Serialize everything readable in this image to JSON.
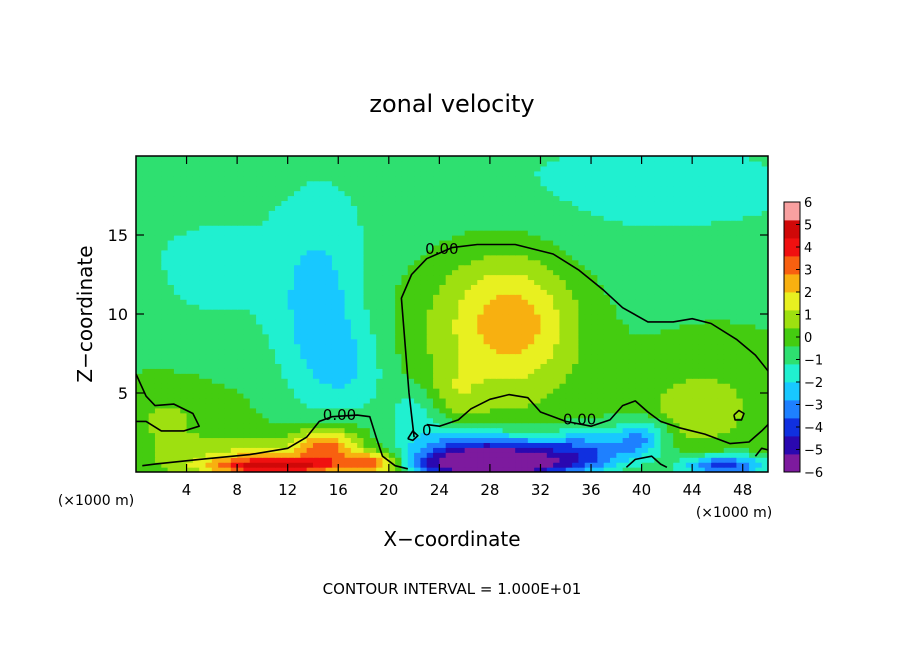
{
  "chart_data": {
    "type": "heatmap",
    "title": "zonal velocity",
    "xlabel": "X−coordinate",
    "ylabel": "Z−coordinate",
    "x_unit_left": "(×1000 m)",
    "x_unit_right": "(×1000 m)",
    "footer": "CONTOUR INTERVAL = 1.000E+01",
    "xlim": [
      0,
      50
    ],
    "ylim": [
      0,
      20
    ],
    "x_ticks": [
      4,
      8,
      12,
      16,
      20,
      24,
      28,
      32,
      36,
      40,
      44,
      48
    ],
    "y_ticks": [
      5,
      10,
      15
    ],
    "colorbar": {
      "ticks": [
        6,
        5,
        4,
        3,
        2,
        1,
        0,
        -1,
        -2,
        -3,
        -4,
        -5,
        -6
      ],
      "tick_labels": [
        "6",
        "5",
        "4",
        "3",
        "2",
        "1",
        "0",
        "−1",
        "−2",
        "−3",
        "−4",
        "−5",
        "−6"
      ],
      "range": [
        -6,
        6
      ],
      "colors": [
        "#7d1a9e",
        "#2a08b0",
        "#1030e0",
        "#1e80ff",
        "#18c8ff",
        "#20f0d0",
        "#2ee070",
        "#44cc10",
        "#9ee010",
        "#e8f020",
        "#f8b010",
        "#f86010",
        "#f01010",
        "#d00808",
        "#f8a0a0"
      ]
    },
    "contour_labels": [
      {
        "text": "0.00",
        "x": 24.2,
        "y": 13.8
      },
      {
        "text": "0.00",
        "x": 16.1,
        "y": 3.3
      },
      {
        "text": "0.00",
        "x": 35.1,
        "y": 3.0
      },
      {
        "text": "0",
        "x": 23.0,
        "y": 2.3
      }
    ],
    "features": [
      {
        "value": 2.3,
        "x": 30.0,
        "y": 9.5,
        "sx": 3.5,
        "sy": 3.0
      },
      {
        "value": 1.0,
        "x": 27.0,
        "y": 10.0,
        "sx": 5.0,
        "sy": 4.0
      },
      {
        "value": 1.2,
        "x": 25.0,
        "y": 4.8,
        "sx": 1.5,
        "sy": 1.2
      },
      {
        "value": 1.0,
        "x": 44.0,
        "y": 3.8,
        "sx": 3.0,
        "sy": 1.5
      },
      {
        "value": -1.8,
        "x": 14.5,
        "y": 9.5,
        "sx": 2.5,
        "sy": 4.5
      },
      {
        "value": -1.0,
        "x": 17.5,
        "y": 6.5,
        "sx": 2.0,
        "sy": 2.0
      },
      {
        "value": -1.5,
        "x": 22.5,
        "y": 3.8,
        "sx": 2.0,
        "sy": 1.3
      },
      {
        "value": -3.5,
        "x": 26.0,
        "y": 1.3,
        "sx": 3.5,
        "sy": 0.9
      },
      {
        "value": -3.2,
        "x": 31.0,
        "y": 1.0,
        "sx": 3.5,
        "sy": 0.9
      },
      {
        "value": -2.5,
        "x": 36.0,
        "y": 1.3,
        "sx": 2.5,
        "sy": 1.0
      },
      {
        "value": -2.5,
        "x": 40.0,
        "y": 2.2,
        "sx": 1.5,
        "sy": 0.9
      },
      {
        "value": -4.5,
        "x": 27.5,
        "y": 0.4,
        "sx": 4.0,
        "sy": 0.5
      },
      {
        "value": -4.0,
        "x": 46.5,
        "y": 0.4,
        "sx": 2.5,
        "sy": 0.5
      },
      {
        "value": 3.5,
        "x": 15.0,
        "y": 1.6,
        "sx": 1.8,
        "sy": 0.9
      },
      {
        "value": 4.2,
        "x": 11.0,
        "y": 0.4,
        "sx": 3.5,
        "sy": 0.4
      },
      {
        "value": 3.5,
        "x": 19.0,
        "y": 0.6,
        "sx": 1.5,
        "sy": 0.5
      },
      {
        "value": 1.5,
        "x": 9.0,
        "y": 1.0,
        "sx": 4.0,
        "sy": 0.8
      },
      {
        "value": 0.8,
        "x": 2.5,
        "y": 3.5,
        "sx": 2.5,
        "sy": 1.5
      },
      {
        "value": 0.5,
        "x": 46.0,
        "y": 6.5,
        "sx": 4.0,
        "sy": 2.5
      },
      {
        "value": -0.6,
        "x": 6.0,
        "y": 12.0,
        "sx": 4.0,
        "sy": 3.0
      },
      {
        "value": -0.5,
        "x": 40.0,
        "y": 18.0,
        "sx": 12.0,
        "sy": 2.5
      }
    ],
    "zero_contours": [
      [
        [
          22.0,
          2.2
        ],
        [
          21.6,
          5.0
        ],
        [
          21.3,
          8.0
        ],
        [
          21.0,
          11.0
        ],
        [
          21.8,
          12.5
        ],
        [
          23.0,
          13.5
        ],
        [
          25.0,
          14.2
        ],
        [
          27.0,
          14.4
        ],
        [
          30.0,
          14.4
        ],
        [
          33.0,
          13.8
        ],
        [
          35.0,
          12.8
        ],
        [
          37.0,
          11.5
        ],
        [
          38.5,
          10.4
        ],
        [
          40.5,
          9.5
        ],
        [
          42.5,
          9.5
        ],
        [
          44.0,
          9.7
        ],
        [
          45.5,
          9.4
        ],
        [
          47.5,
          8.4
        ],
        [
          49.0,
          7.4
        ],
        [
          50.0,
          6.4
        ]
      ],
      [
        [
          0.0,
          6.2
        ],
        [
          0.8,
          4.8
        ],
        [
          1.5,
          4.2
        ],
        [
          3.0,
          4.3
        ],
        [
          4.5,
          3.7
        ],
        [
          5.0,
          2.9
        ],
        [
          3.8,
          2.6
        ],
        [
          2.0,
          2.6
        ],
        [
          0.8,
          3.2
        ],
        [
          0.0,
          3.2
        ]
      ],
      [
        [
          0.5,
          0.4
        ],
        [
          1.5,
          0.5
        ],
        [
          5.0,
          0.8
        ],
        [
          9.0,
          1.1
        ],
        [
          12.0,
          1.5
        ],
        [
          13.5,
          2.2
        ],
        [
          14.5,
          3.2
        ],
        [
          15.5,
          3.5
        ],
        [
          17.5,
          3.6
        ],
        [
          18.5,
          3.5
        ],
        [
          19.0,
          2.2
        ],
        [
          19.5,
          1.0
        ],
        [
          20.5,
          0.4
        ],
        [
          21.5,
          0.2
        ]
      ],
      [
        [
          23.0,
          3.0
        ],
        [
          24.0,
          2.9
        ],
        [
          25.5,
          3.3
        ],
        [
          26.5,
          4.0
        ],
        [
          28.0,
          4.6
        ],
        [
          29.5,
          4.9
        ],
        [
          31.0,
          4.7
        ],
        [
          32.0,
          3.8
        ],
        [
          34.0,
          3.2
        ],
        [
          36.0,
          2.9
        ],
        [
          37.5,
          3.3
        ],
        [
          38.5,
          4.2
        ],
        [
          39.5,
          4.5
        ],
        [
          40.5,
          3.8
        ],
        [
          41.5,
          3.2
        ],
        [
          43.0,
          2.8
        ],
        [
          45.0,
          2.4
        ],
        [
          47.0,
          1.8
        ],
        [
          48.5,
          1.9
        ],
        [
          49.5,
          2.6
        ],
        [
          50.0,
          3.0
        ]
      ],
      [
        [
          38.8,
          0.3
        ],
        [
          39.5,
          0.8
        ],
        [
          40.8,
          1.0
        ],
        [
          41.5,
          0.5
        ],
        [
          42.0,
          0.3
        ]
      ],
      [
        [
          47.3,
          3.6
        ],
        [
          47.7,
          3.9
        ],
        [
          48.1,
          3.7
        ],
        [
          47.9,
          3.3
        ],
        [
          47.4,
          3.3
        ],
        [
          47.3,
          3.6
        ]
      ],
      [
        [
          49.0,
          1.0
        ],
        [
          49.5,
          1.5
        ],
        [
          50.0,
          1.4
        ]
      ],
      [
        [
          21.5,
          2.1
        ],
        [
          21.9,
          2.6
        ],
        [
          22.3,
          2.3
        ],
        [
          21.9,
          2.0
        ],
        [
          21.5,
          2.1
        ]
      ]
    ]
  }
}
